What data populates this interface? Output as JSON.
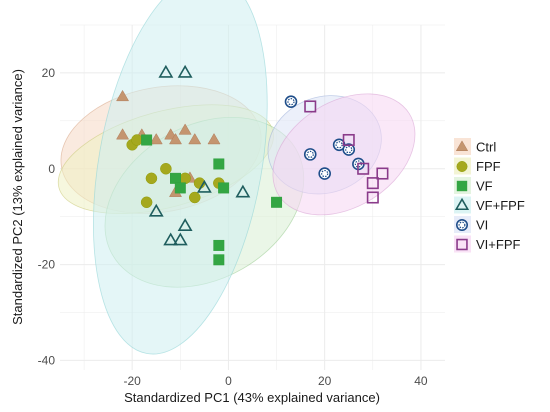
{
  "chart_data": {
    "type": "scatter",
    "xlabel": "Standardized PC1 (43% explained variance)",
    "ylabel": "Standardized PC2 (13% explained variance)",
    "xlim": [
      -35,
      45
    ],
    "ylim": [
      -42,
      30
    ],
    "x_ticks": [
      "-20",
      "0",
      "20",
      "40"
    ],
    "y_ticks": [
      "-40",
      "-20",
      "0",
      "20"
    ],
    "grid": true,
    "legend_position": "right",
    "series": [
      {
        "name": "Ctrl",
        "color": "#B07D5B",
        "shape": "triangle-filled",
        "fill": "#C4956F",
        "points": [
          [
            -22,
            15
          ],
          [
            -22,
            7
          ],
          [
            -18,
            7
          ],
          [
            -15,
            6
          ],
          [
            -12,
            7
          ],
          [
            -11,
            6
          ],
          [
            -9,
            8
          ],
          [
            -7,
            6
          ],
          [
            -8,
            -2
          ],
          [
            -3,
            6
          ],
          [
            -11,
            -5
          ]
        ],
        "ellipse": {
          "cx": -14,
          "cy": 4,
          "rx": 21,
          "ry": 13,
          "angle": -10,
          "fill": "#F6D9C5",
          "stroke": "#D9A98A"
        }
      },
      {
        "name": "FPF",
        "color": "#8F9C0A",
        "shape": "circle-filled",
        "fill": "#A5A81E",
        "points": [
          [
            -20,
            5
          ],
          [
            -19,
            6
          ],
          [
            -17,
            -7
          ],
          [
            -16,
            -2
          ],
          [
            -13,
            0
          ],
          [
            -9,
            -2
          ],
          [
            -7,
            -6
          ],
          [
            -6,
            -3
          ],
          [
            -2,
            -3
          ]
        ],
        "ellipse": {
          "cx": -13,
          "cy": 2,
          "rx": 23,
          "ry": 10,
          "angle": -15,
          "fill": "#EEF0C2",
          "stroke": "#C9C97A"
        }
      },
      {
        "name": "VF",
        "color": "#2E9E3C",
        "shape": "square-filled",
        "fill": "#33A643",
        "points": [
          [
            -17,
            6
          ],
          [
            -11,
            -2
          ],
          [
            -10,
            -4
          ],
          [
            -2,
            1
          ],
          [
            -2,
            -16
          ],
          [
            -2,
            -19
          ],
          [
            10,
            -7
          ],
          [
            -1,
            -4
          ]
        ],
        "ellipse": {
          "cx": -5,
          "cy": -7,
          "rx": 22,
          "ry": 16,
          "angle": -30,
          "fill": "#D8EFD3",
          "stroke": "#9CCD95"
        }
      },
      {
        "name": "VF+FPF",
        "color": "#1F5E5E",
        "shape": "triangle-open",
        "fill": "none",
        "points": [
          [
            -13,
            20
          ],
          [
            -9,
            20
          ],
          [
            -15,
            -9
          ],
          [
            -12,
            -15
          ],
          [
            -10,
            -15
          ],
          [
            -9,
            -12
          ],
          [
            -5,
            -4
          ],
          [
            3,
            -5
          ]
        ],
        "ellipse": {
          "cx": -10,
          "cy": 1,
          "rx": 40,
          "ry": 17,
          "angle": -80,
          "fill": "#CDEFF0",
          "stroke": "#8FD3D6"
        }
      },
      {
        "name": "VI",
        "color": "#1F4E8A",
        "shape": "circle-dotted",
        "fill": "#FFFFFF",
        "points": [
          [
            13,
            14
          ],
          [
            17,
            3
          ],
          [
            20,
            -1
          ],
          [
            23,
            5
          ],
          [
            25,
            4
          ],
          [
            27,
            1
          ]
        ],
        "ellipse": {
          "cx": 20,
          "cy": 5,
          "rx": 12,
          "ry": 10,
          "angle": -20,
          "fill": "#DDE4F6",
          "stroke": "#9FB0DA"
        }
      },
      {
        "name": "VI+FPF",
        "color": "#8A3B8A",
        "shape": "square-open",
        "fill": "none",
        "points": [
          [
            17,
            13
          ],
          [
            25,
            6
          ],
          [
            28,
            0
          ],
          [
            30,
            -3
          ],
          [
            30,
            -6
          ],
          [
            32,
            -1
          ]
        ],
        "ellipse": {
          "cx": 24,
          "cy": 3,
          "rx": 16,
          "ry": 11,
          "angle": -32,
          "fill": "#F6D6F2",
          "stroke": "#D9A3D3"
        }
      }
    ]
  }
}
